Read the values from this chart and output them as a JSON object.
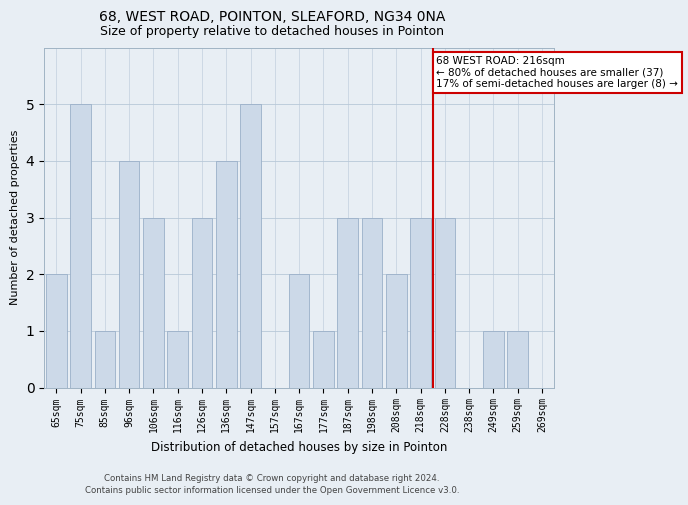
{
  "title": "68, WEST ROAD, POINTON, SLEAFORD, NG34 0NA",
  "subtitle": "Size of property relative to detached houses in Pointon",
  "xlabel": "Distribution of detached houses by size in Pointon",
  "ylabel": "Number of detached properties",
  "categories": [
    "65sqm",
    "75sqm",
    "85sqm",
    "96sqm",
    "106sqm",
    "116sqm",
    "126sqm",
    "136sqm",
    "147sqm",
    "157sqm",
    "167sqm",
    "177sqm",
    "187sqm",
    "198sqm",
    "208sqm",
    "218sqm",
    "228sqm",
    "238sqm",
    "249sqm",
    "259sqm",
    "269sqm"
  ],
  "values": [
    2,
    5,
    1,
    4,
    3,
    1,
    3,
    4,
    5,
    0,
    2,
    1,
    3,
    3,
    2,
    3,
    3,
    0,
    1,
    1,
    0
  ],
  "bar_color": "#ccd9e8",
  "bar_edge_color": "#9ab0c8",
  "vline_x": 15.5,
  "vline_color": "#cc0000",
  "annotation_text": "68 WEST ROAD: 216sqm\n← 80% of detached houses are smaller (37)\n17% of semi-detached houses are larger (8) →",
  "annotation_box_color": "#ffffff",
  "annotation_box_edge": "#cc0000",
  "footer_line1": "Contains HM Land Registry data © Crown copyright and database right 2024.",
  "footer_line2": "Contains public sector information licensed under the Open Government Licence v3.0.",
  "background_color": "#e8eef4",
  "ylim": [
    0,
    6
  ],
  "yticks": [
    0,
    1,
    2,
    3,
    4,
    5,
    6
  ],
  "title_fontsize": 10,
  "subtitle_fontsize": 9,
  "axis_label_fontsize": 8.5,
  "tick_fontsize": 7,
  "ylabel_fontsize": 8
}
